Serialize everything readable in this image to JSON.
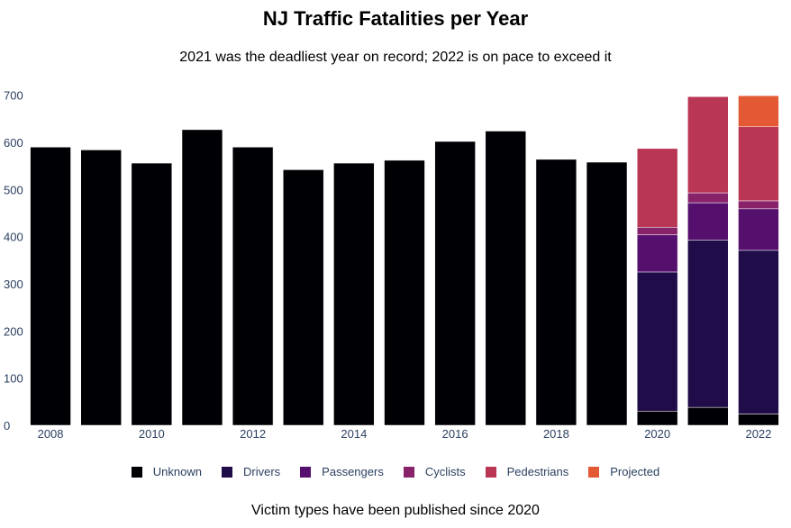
{
  "chart_data": {
    "type": "bar",
    "stacked": true,
    "title": "NJ Traffic Fatalities per Year",
    "subtitle": "2021 was the deadliest year on record; 2022 is on pace to exceed it",
    "caption": "Victim types have been published since 2020",
    "categories": [
      2008,
      2009,
      2010,
      2011,
      2012,
      2013,
      2014,
      2015,
      2016,
      2017,
      2018,
      2019,
      2020,
      2021,
      2022
    ],
    "x_ticks": [
      "2008",
      "2010",
      "2012",
      "2014",
      "2016",
      "2018",
      "2020",
      "2022"
    ],
    "y_ticks": [
      0,
      100,
      200,
      300,
      400,
      500,
      600,
      700
    ],
    "ylim": [
      0,
      730
    ],
    "legend_position": "bottom",
    "series": [
      {
        "name": "Unknown",
        "color": "#000004",
        "values": [
          590,
          584,
          556,
          627,
          590,
          542,
          556,
          562,
          602,
          624,
          564,
          558,
          30,
          38,
          24
        ]
      },
      {
        "name": "Drivers",
        "color": "#1f0c48",
        "values": [
          0,
          0,
          0,
          0,
          0,
          0,
          0,
          0,
          0,
          0,
          0,
          0,
          295,
          355,
          347
        ]
      },
      {
        "name": "Passengers",
        "color": "#550f6d",
        "values": [
          0,
          0,
          0,
          0,
          0,
          0,
          0,
          0,
          0,
          0,
          0,
          0,
          79,
          79,
          88
        ]
      },
      {
        "name": "Cyclists",
        "color": "#88226a",
        "values": [
          0,
          0,
          0,
          0,
          0,
          0,
          0,
          0,
          0,
          0,
          0,
          0,
          16,
          21,
          17
        ]
      },
      {
        "name": "Pedestrians",
        "color": "#ba3655",
        "values": [
          0,
          0,
          0,
          0,
          0,
          0,
          0,
          0,
          0,
          0,
          0,
          0,
          167,
          204,
          157
        ]
      },
      {
        "name": "Projected",
        "color": "#e35933",
        "values": [
          0,
          0,
          0,
          0,
          0,
          0,
          0,
          0,
          0,
          0,
          0,
          0,
          0,
          0,
          66
        ]
      }
    ]
  }
}
